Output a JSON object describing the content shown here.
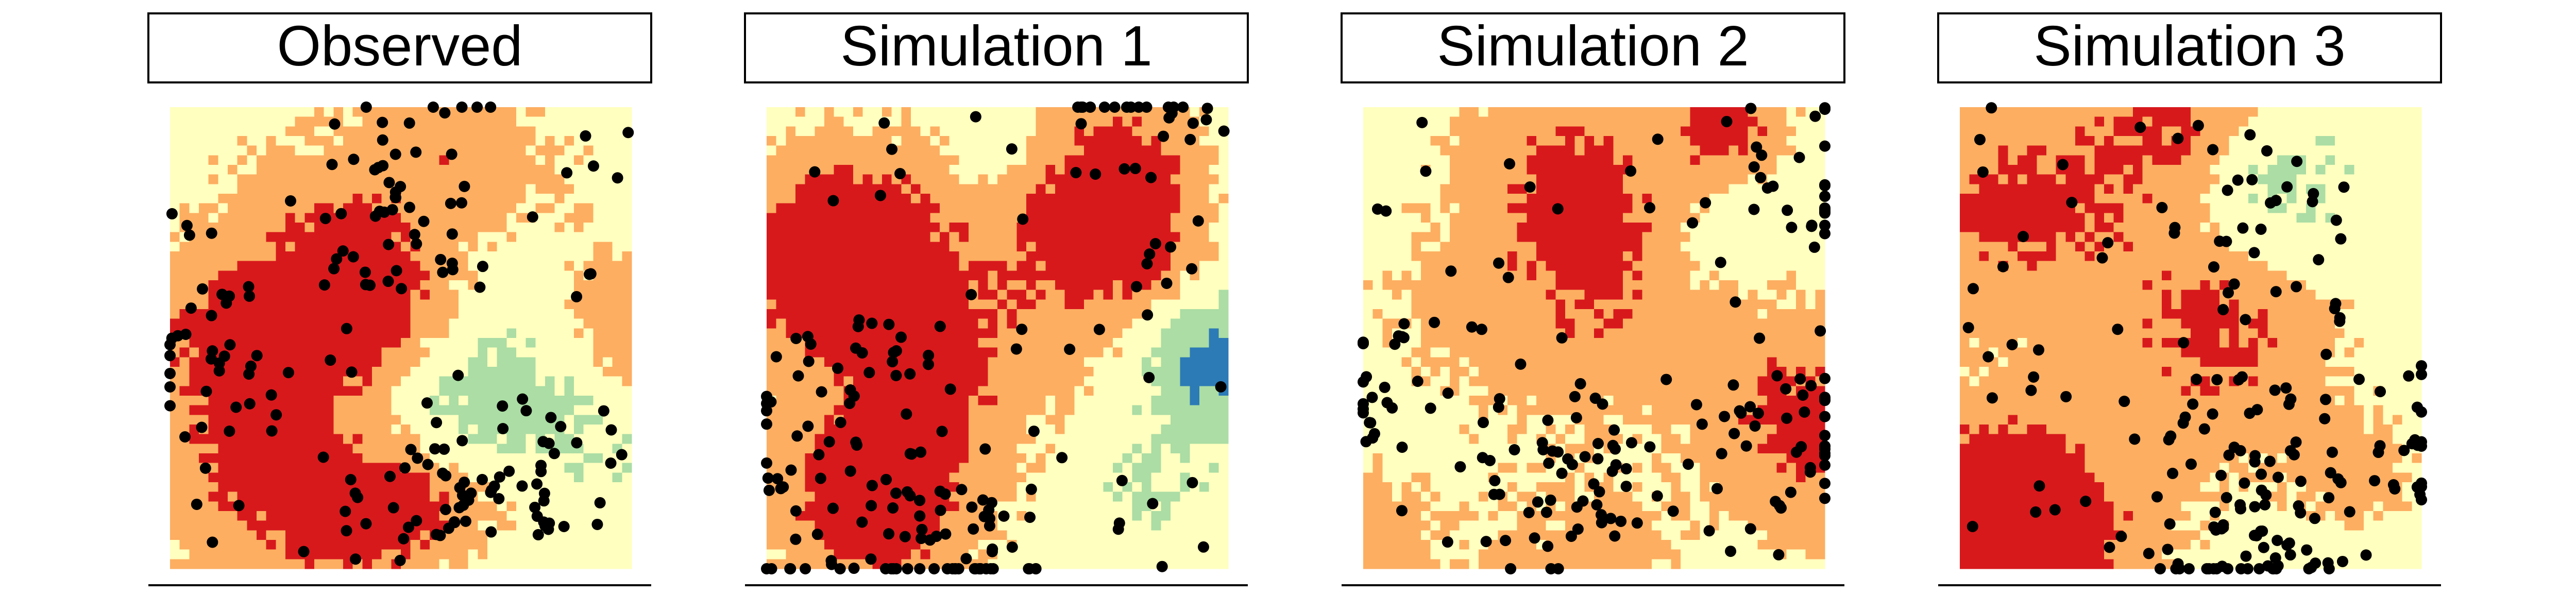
{
  "panels": [
    {
      "title": "Observed"
    },
    {
      "title": "Simulation 1"
    },
    {
      "title": "Simulation 2"
    },
    {
      "title": "Simulation 3"
    }
  ]
}
